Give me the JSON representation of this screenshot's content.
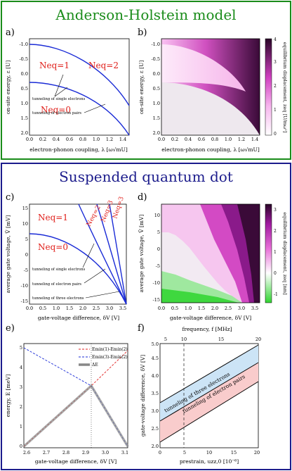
{
  "top_section": {
    "title": "Anderson-Holstein model",
    "title_color": "#1a8c1a",
    "border_color": "#1a8c1a"
  },
  "bottom_section": {
    "title": "Suspended quantum dot",
    "title_color": "#1c1c8c",
    "border_color": "#1c1c8c"
  },
  "panel_a": {
    "label": "a)",
    "xlabel": "electron-phonon coupling, λ [ω√mU]",
    "ylabel": "on-site energy, ε [U]",
    "xticks": [
      "0.0",
      "0.2",
      "0.4",
      "0.6",
      "0.8",
      "1.0",
      "1.2",
      "1.4"
    ],
    "yticks": [
      "-1.0",
      "-0.5",
      "0.0",
      "0.5",
      "1.0",
      "1.5",
      "2.0"
    ],
    "regions": [
      "Neq=1",
      "Neq=2",
      "Neq=0"
    ],
    "annotations": [
      "tunneling of single electrons",
      "tunneling of electron pairs"
    ]
  },
  "panel_b": {
    "label": "b)",
    "xlabel": "electron-phonon coupling, λ [ω√mU]",
    "ylabel": "on-site energy, ε [U]",
    "cbar_label": "equilibrium displacement, zeq [U/mω²]",
    "cbar_ticks": [
      "0",
      "1",
      "2",
      "3",
      "4"
    ],
    "xticks": [
      "0.0",
      "0.2",
      "0.4",
      "0.6",
      "0.8",
      "1.0",
      "1.2",
      "1.4"
    ],
    "yticks": [
      "-1.0",
      "-0.5",
      "0.0",
      "0.5",
      "1.0",
      "1.5",
      "2.0"
    ]
  },
  "panel_c": {
    "label": "c)",
    "xlabel": "gate-voltage difference, δV [V]",
    "ylabel": "average gate voltage, V̄ [mV]",
    "xticks": [
      "0.0",
      "0.5",
      "1.0",
      "1.5",
      "2.0",
      "2.5",
      "3.0",
      "3.5"
    ],
    "yticks": [
      "15",
      "10",
      "5",
      "0",
      "-5",
      "-10",
      "-15"
    ],
    "regions": [
      "Neq=1",
      "Neq=0",
      "Neq=2",
      "Neq=3",
      "Neq=3"
    ],
    "annotations": [
      "tunneling of single electrons",
      "tunneling of electron pairs",
      "tunneling of three electrons"
    ]
  },
  "panel_d": {
    "label": "d)",
    "xlabel": "gate-voltage difference, δV [V]",
    "ylabel": "average gate voltage, V̄ [mV]",
    "cbar_label": "equilibrium displacement, zeq [nm]",
    "cbar_ticks": [
      "3",
      "2",
      "1",
      "0",
      "-1"
    ],
    "xticks": [
      "0.0",
      "0.5",
      "1.0",
      "1.5",
      "2.0",
      "2.5",
      "3.0",
      "3.5"
    ],
    "yticks": [
      "10",
      "5",
      "0",
      "-5",
      "-10",
      "-15"
    ]
  },
  "panel_e": {
    "label": "e)",
    "xlabel": "gate-voltage difference, δV [V]",
    "ylabel": "energy, E [meV]",
    "xticks": [
      "2.6",
      "2.7",
      "2.8",
      "2.9",
      "3.0",
      "3.1"
    ],
    "yticks": [
      "0",
      "1",
      "2",
      "3",
      "4",
      "5"
    ],
    "legend": [
      "Emin(1)-Emin(2)",
      "Emin(3)-Emin(2)",
      "ΔE"
    ]
  },
  "panel_f": {
    "label": "f)",
    "xlabel": "prestrain, uzz,0 [10⁻⁶]",
    "ylabel": "gate-voltage difference, δV [V]",
    "top_label": "frequency, f [MHz]",
    "xticks": [
      "0",
      "5",
      "10",
      "15",
      "20"
    ],
    "top_ticks": [
      "5",
      "10",
      "15",
      "20"
    ],
    "yticks": [
      "2.0",
      "2.5",
      "3.0",
      "3.5",
      "4.0",
      "4.5",
      "5.0"
    ],
    "annotations": [
      "tunneling of three electrons",
      "tunneling of electron pairs"
    ]
  }
}
